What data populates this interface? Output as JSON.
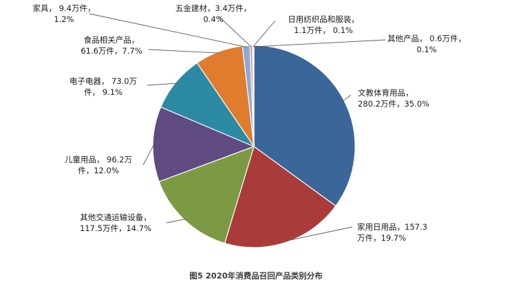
{
  "chart_data": {
    "type": "pie",
    "caption": "图5  2020年消费品召回产品类别分布",
    "slices": [
      {
        "name": "文教体育用品",
        "value": 280.2,
        "percent": 35.0,
        "label_lines": [
          "文教体育用品，",
          "280.2万件，35.0%"
        ],
        "color": "#3a6699"
      },
      {
        "name": "家用日用品",
        "value": 157.3,
        "percent": 19.7,
        "label_lines": [
          "家用日用品，157.3",
          "万件，19.7%"
        ],
        "color": "#a93c3a"
      },
      {
        "name": "其他交通运输设备",
        "value": 117.5,
        "percent": 14.7,
        "label_lines": [
          "其他交通运输设备，",
          "117.5万件，14.7%"
        ],
        "color": "#7b9a43"
      },
      {
        "name": "儿童用品",
        "value": 96.2,
        "percent": 12.0,
        "label_lines": [
          "儿童用品，  96.2万",
          "件，12.0%"
        ],
        "color": "#5f4a82"
      },
      {
        "name": "电子电器",
        "value": 73.0,
        "percent": 9.1,
        "label_lines": [
          "电子电器，  73.0万",
          "件，  9.1%"
        ],
        "color": "#2d8aa3"
      },
      {
        "name": "食品相关产品",
        "value": 61.6,
        "percent": 7.7,
        "label_lines": [
          "食品相关产品，",
          "61.6万件，7.7%"
        ],
        "color": "#e07c2e"
      },
      {
        "name": "家具",
        "value": 9.4,
        "percent": 1.2,
        "label_lines": [
          "家具，  9.4万件，",
          "1.2%"
        ],
        "color": "#8fa8d6"
      },
      {
        "name": "五金建材",
        "value": 3.4,
        "percent": 0.4,
        "label_lines": [
          "五金建材，3.4万件，",
          "0.4%"
        ],
        "color": "#d99a97"
      },
      {
        "name": "日用纺织品和服装",
        "value": 1.1,
        "percent": 0.1,
        "label_lines": [
          "日用纺织品和服装，",
          "1.1万件，  0.1%"
        ],
        "color": "#c4d79b"
      },
      {
        "name": "其他产品",
        "value": 0.6,
        "percent": 0.1,
        "label_lines": [
          "其他产品，  0.6万件，",
          "0.1%"
        ],
        "color": "#8d7bad"
      }
    ]
  }
}
